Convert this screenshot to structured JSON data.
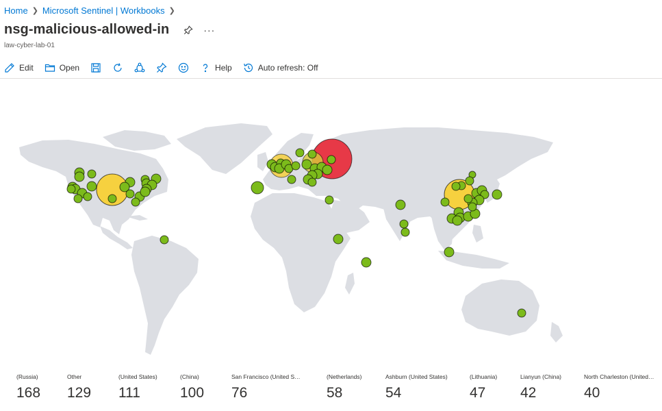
{
  "breadcrumb": {
    "items": [
      "Home",
      "Microsoft Sentinel | Workbooks"
    ]
  },
  "header": {
    "title": "nsg-malicious-allowed-in",
    "subtitle": "law-cyber-lab-01",
    "pin_icon": "pin-icon",
    "more_label": "···"
  },
  "toolbar": {
    "edit_label": "Edit",
    "open_label": "Open",
    "help_label": "Help",
    "auto_refresh_label": "Auto refresh: Off"
  },
  "colors": {
    "link": "#0078d4",
    "land": "#dcdee3",
    "high": "#e8313f",
    "medium": "#f6d13f",
    "low": "#7cbb1b"
  },
  "tiles": [
    {
      "label": "(Russia)",
      "value": "168"
    },
    {
      "label": "Other",
      "value": "129"
    },
    {
      "label": "(United States)",
      "value": "111"
    },
    {
      "label": "(China)",
      "value": "100"
    },
    {
      "label": "San Francisco (United States)",
      "value": "76"
    },
    {
      "label": "(Netherlands)",
      "value": "58"
    },
    {
      "label": "Ashburn (United States)",
      "value": "54"
    },
    {
      "label": "(Lithuania)",
      "value": "47"
    },
    {
      "label": "Lianyun (China)",
      "value": "42"
    },
    {
      "label": "North Charleston (United States)",
      "value": "40"
    }
  ]
}
